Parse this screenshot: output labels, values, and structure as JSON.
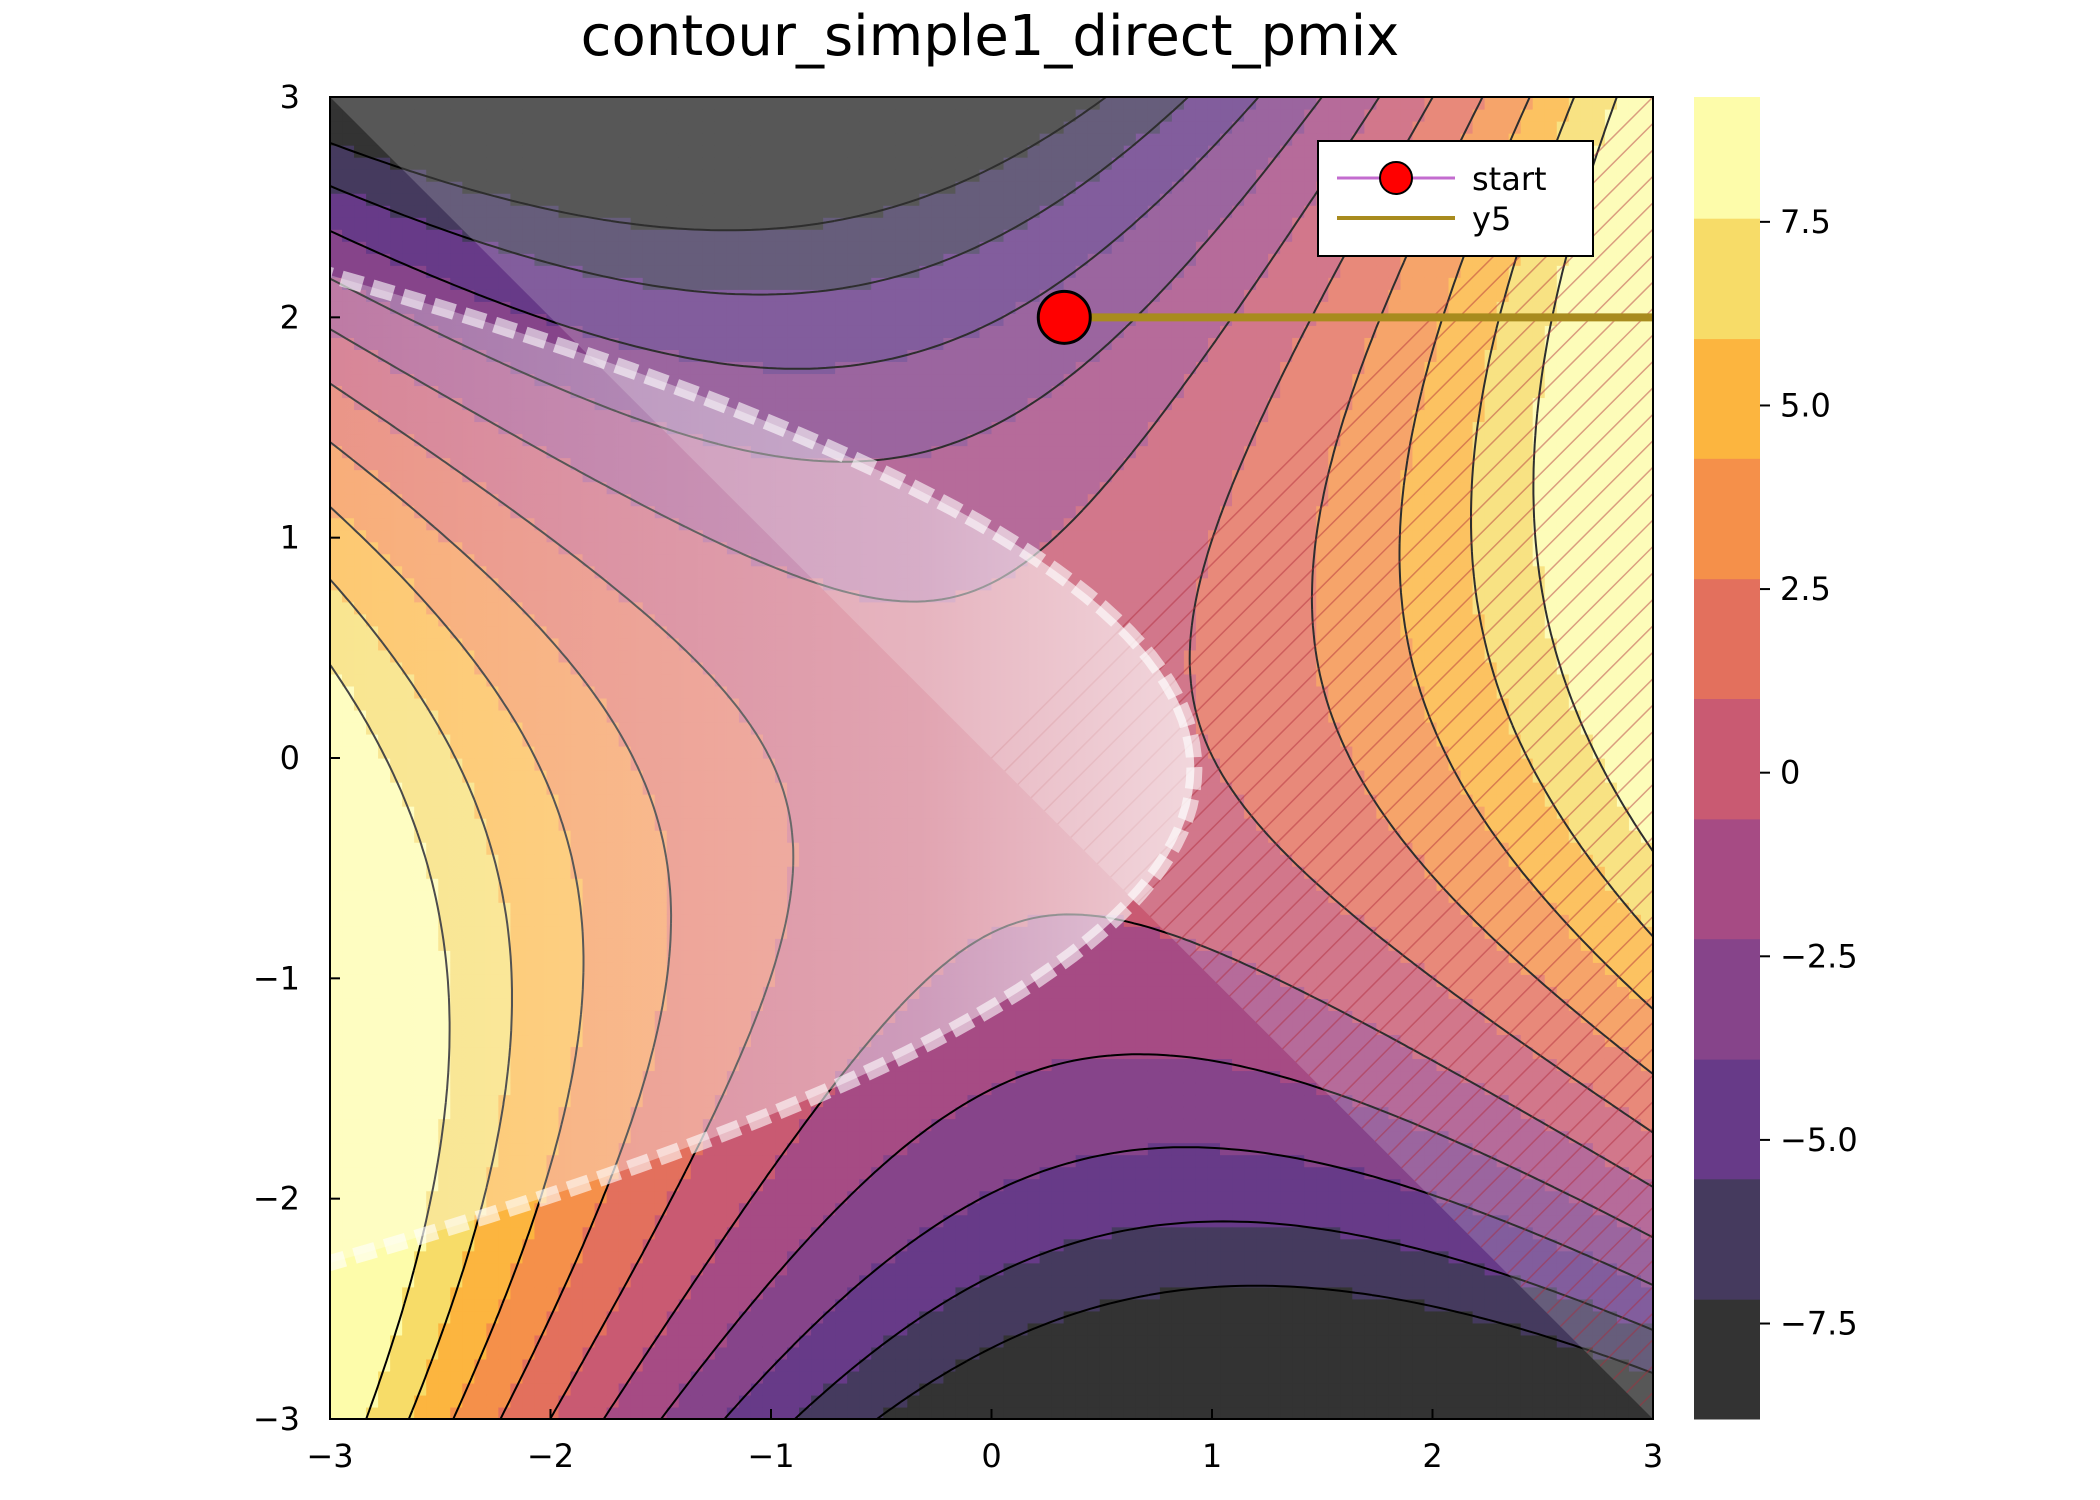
{
  "chart_data": {
    "type": "contour",
    "title": "contour_simple1_direct_pmix",
    "xlabel": "",
    "ylabel": "",
    "xlim": [
      -3,
      3
    ],
    "ylim": [
      -3,
      3
    ],
    "xticks": [
      -3,
      -2,
      -1,
      0,
      1,
      2,
      3
    ],
    "xtick_labels": [
      "−3",
      "−2",
      "−1",
      "0",
      "1",
      "2",
      "3"
    ],
    "yticks": [
      -3,
      -2,
      -1,
      0,
      1,
      2,
      3
    ],
    "ytick_labels": [
      "−3",
      "−2",
      "−1",
      "0",
      "1",
      "2",
      "3"
    ],
    "colorbar": {
      "range": [
        -8.8,
        9.2
      ],
      "ticks": [
        7.5,
        5.0,
        2.5,
        0,
        -2.5,
        -5.0,
        -7.5
      ],
      "tick_labels": [
        "7.5",
        "5.0",
        "2.5",
        "0",
        "−2.5",
        "−5.0",
        "−7.5"
      ],
      "bands": [
        {
          "from": -8.8,
          "to": -7.17,
          "color": "#333333"
        },
        {
          "from": -7.17,
          "to": -5.53,
          "color": "#453a5e"
        },
        {
          "from": -5.53,
          "to": -3.9,
          "color": "#673a88"
        },
        {
          "from": -3.9,
          "to": -2.26,
          "color": "#86448a"
        },
        {
          "from": -2.26,
          "to": -0.63,
          "color": "#a64b84"
        },
        {
          "from": -0.63,
          "to": 1.01,
          "color": "#c95a72"
        },
        {
          "from": 1.01,
          "to": 2.64,
          "color": "#e3705d"
        },
        {
          "from": 2.64,
          "to": 4.28,
          "color": "#f5904a"
        },
        {
          "from": 4.28,
          "to": 5.91,
          "color": "#fcb53f"
        },
        {
          "from": 5.91,
          "to": 7.55,
          "color": "#f7dc68"
        },
        {
          "from": 7.55,
          "to": 9.2,
          "color": "#fdfcaa"
        }
      ]
    },
    "contour_function": "x^2 - y^2 + x*y (saddle), filled + line contours",
    "legend": {
      "position": "top-right",
      "entries": [
        {
          "name": "start",
          "line_color": "#c36ccf",
          "marker_color": "#ff0000"
        },
        {
          "name": "y5",
          "line_color": "#a88b1e"
        }
      ]
    },
    "series": [
      {
        "name": "start",
        "type": "scatter",
        "x": [
          0.33
        ],
        "y": [
          2.0
        ],
        "color": "#ff0000"
      },
      {
        "name": "y5",
        "type": "line",
        "x": [
          0.33,
          3.0
        ],
        "y": [
          2.0,
          2.0
        ],
        "color": "#a88b1e"
      }
    ],
    "overlays": [
      {
        "kind": "hatched-region",
        "description": "diagonal hatching over the band above y = -x",
        "color": "#ffffff"
      },
      {
        "kind": "translucent-blob",
        "description": "white semi-transparent parabolic region around y = 0 for x < 0.9",
        "color": "#ffffff"
      }
    ]
  }
}
